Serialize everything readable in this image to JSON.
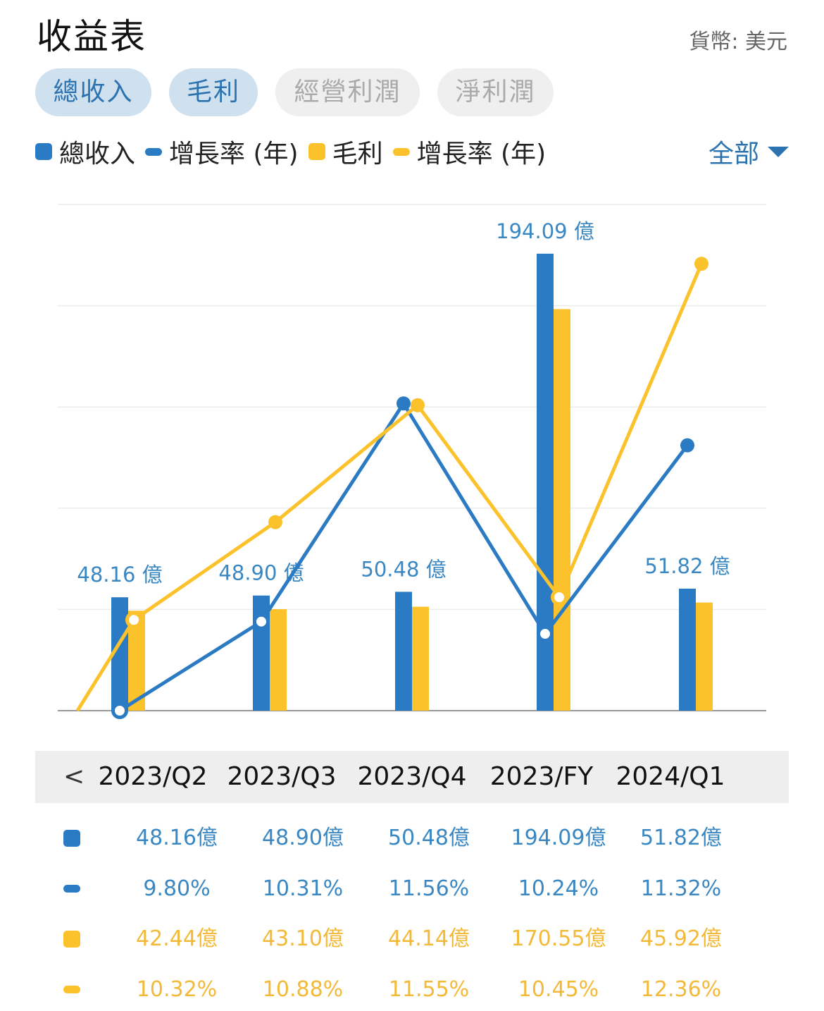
{
  "header": {
    "title": "收益表",
    "currency": "貨幣: 美元"
  },
  "tabs": [
    {
      "label": "總收入",
      "active": true
    },
    {
      "label": "毛利",
      "active": true
    },
    {
      "label": "經營利潤",
      "active": false
    },
    {
      "label": "淨利潤",
      "active": false
    }
  ],
  "legend": [
    {
      "label": "總收入",
      "shape": "square",
      "color": "#2a7bc4"
    },
    {
      "label": "增長率 (年)",
      "shape": "line",
      "color": "#2a7bc4"
    },
    {
      "label": "毛利",
      "shape": "square",
      "color": "#fbc22c"
    },
    {
      "label": "增長率 (年)",
      "shape": "line",
      "color": "#fbc22c"
    }
  ],
  "filter": {
    "label": "全部"
  },
  "colors": {
    "blue": "#2a7bc4",
    "yellow": "#fbc22c",
    "blue_text": "#3a87c2",
    "yellow_text": "#f3b938"
  },
  "chart_data": {
    "type": "bar",
    "categories": [
      "2023/Q2",
      "2023/Q3",
      "2023/Q4",
      "2023/FY",
      "2024/Q1"
    ],
    "series": [
      {
        "name": "總收入",
        "type": "bar",
        "values": [
          48.16,
          48.9,
          50.48,
          194.09,
          51.82
        ],
        "unit": "億"
      },
      {
        "name": "毛利",
        "type": "bar",
        "values": [
          42.44,
          43.1,
          44.14,
          170.55,
          45.92
        ],
        "unit": "億"
      },
      {
        "name": "增長率 (年)",
        "type": "line",
        "of": "總收入",
        "values": [
          9.8,
          10.31,
          11.56,
          10.24,
          11.32
        ],
        "unit": "%"
      },
      {
        "name": "增長率 (年)",
        "type": "line",
        "of": "毛利",
        "values": [
          10.32,
          10.88,
          11.55,
          10.45,
          12.36
        ],
        "unit": "%"
      }
    ],
    "bar_labels": [
      "48.16 億",
      "48.90 億",
      "50.48 億",
      "194.09 億",
      "51.82 億"
    ],
    "ylim_bars": [
      0,
      215
    ],
    "ylim_lines": [
      9.8,
      12.7
    ],
    "grid": true
  },
  "table": {
    "back_label": "<",
    "periods": [
      "2023/Q2",
      "2023/Q3",
      "2023/Q4",
      "2023/FY",
      "2024/Q1"
    ],
    "rows": [
      {
        "key": "square",
        "color": "blue",
        "values": [
          "48.16億",
          "48.90億",
          "50.48億",
          "194.09億",
          "51.82億"
        ]
      },
      {
        "key": "line",
        "color": "blue",
        "values": [
          "9.80%",
          "10.31%",
          "11.56%",
          "10.24%",
          "11.32%"
        ]
      },
      {
        "key": "square",
        "color": "yellow",
        "values": [
          "42.44億",
          "43.10億",
          "44.14億",
          "170.55億",
          "45.92億"
        ]
      },
      {
        "key": "line",
        "color": "yellow",
        "values": [
          "10.32%",
          "10.88%",
          "11.55%",
          "10.45%",
          "12.36%"
        ]
      }
    ]
  }
}
